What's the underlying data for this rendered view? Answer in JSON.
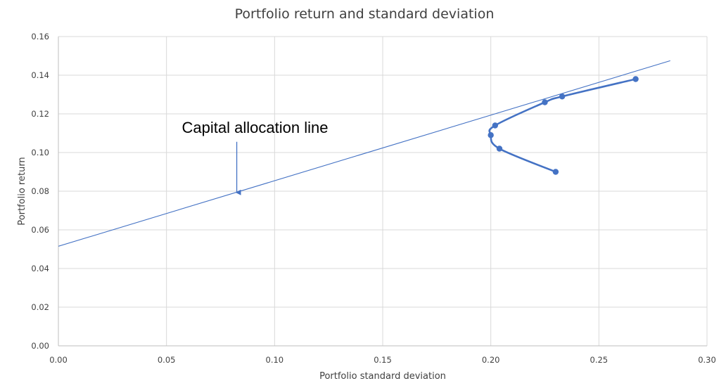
{
  "chart_data": {
    "type": "scatter",
    "title": "Portfolio return and standard deviation",
    "xlabel": "Portfolio standard deviation",
    "ylabel": "Portfolio return",
    "xlim": [
      0,
      0.3
    ],
    "ylim": [
      0,
      0.16
    ],
    "x_ticks": [
      "0.00",
      "0.05",
      "0.10",
      "0.15",
      "0.20",
      "0.25",
      "0.30"
    ],
    "y_ticks": [
      "0.00",
      "0.02",
      "0.04",
      "0.06",
      "0.08",
      "0.10",
      "0.12",
      "0.14",
      "0.16"
    ],
    "grid": true,
    "legend": "none",
    "series": [
      {
        "style": "line-with-markers",
        "color": "#4472c4",
        "x": [
          0.23,
          0.204,
          0.2,
          0.202,
          0.225,
          0.233,
          0.267
        ],
        "y": [
          0.09,
          0.102,
          0.109,
          0.114,
          0.126,
          0.129,
          0.138
        ]
      },
      {
        "style": "line",
        "color": "#4472c4",
        "x": [
          0.0,
          0.283
        ],
        "y": [
          0.0515,
          0.1475
        ]
      }
    ],
    "annotations": [
      {
        "text": "Capital allocation line",
        "arrow_to": {
          "x": 0.0825,
          "y": 0.079
        }
      }
    ]
  }
}
